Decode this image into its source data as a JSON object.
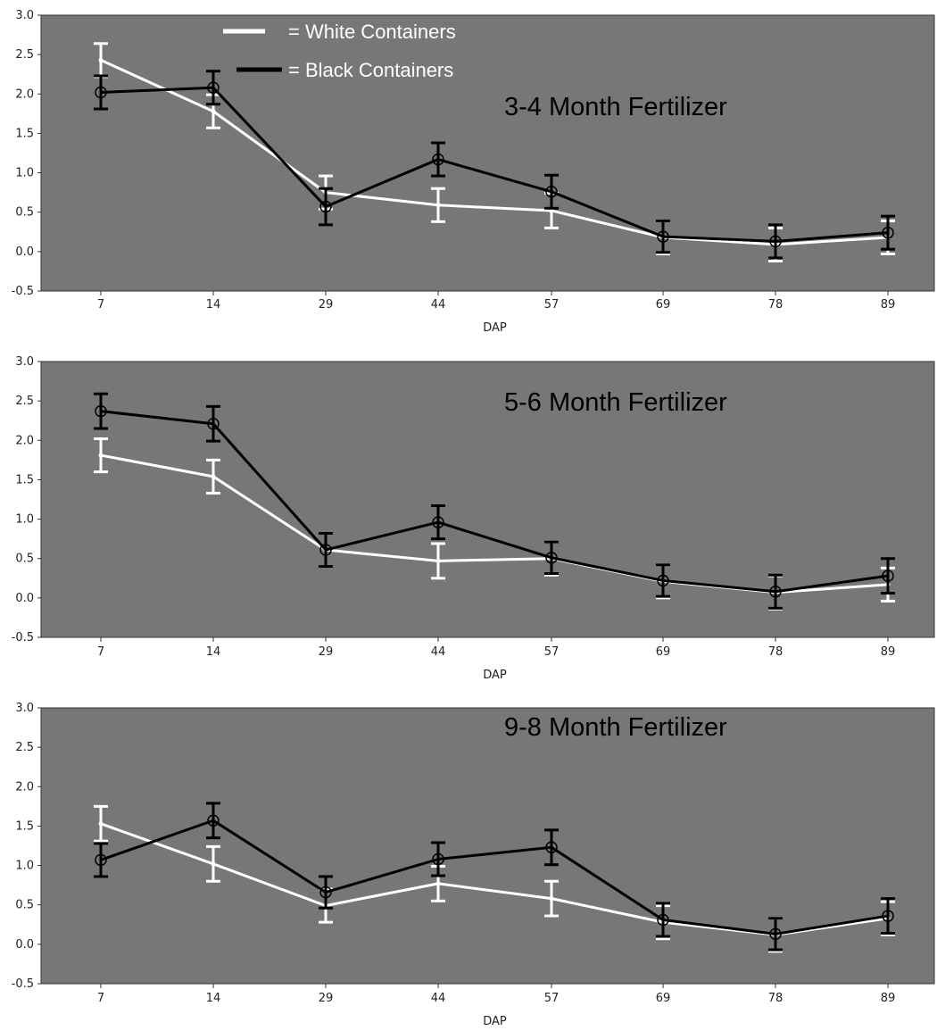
{
  "chart_data": [
    {
      "type": "line",
      "title": "3-4 Month Fertilizer",
      "xlabel": "DAP",
      "ylabel": "",
      "categories": [
        "7",
        "14",
        "29",
        "44",
        "57",
        "69",
        "78",
        "89"
      ],
      "yticks": [
        "-0.5",
        "0.0",
        "0.5",
        "1.0",
        "1.5",
        "2.0",
        "2.5",
        "3.0"
      ],
      "ylim": [
        -0.5,
        3.0
      ],
      "grid": false,
      "background": "#777777",
      "legend": {
        "placement": "top-left",
        "entries": [
          {
            "label": "= White Containers",
            "color": "#ffffff"
          },
          {
            "label": "= Black Containers",
            "color": "#000000"
          }
        ]
      },
      "series": [
        {
          "name": "White Containers",
          "color": "#ffffff",
          "values": [
            2.43,
            1.78,
            0.75,
            0.59,
            0.52,
            0.18,
            0.09,
            0.18
          ],
          "error": [
            0.21,
            0.21,
            0.21,
            0.21,
            0.22,
            0.21,
            0.21,
            0.21
          ]
        },
        {
          "name": "Black Containers",
          "color": "#000000",
          "values": [
            2.02,
            2.08,
            0.57,
            1.17,
            0.76,
            0.19,
            0.13,
            0.24
          ],
          "error": [
            0.21,
            0.21,
            0.23,
            0.21,
            0.21,
            0.2,
            0.21,
            0.21
          ]
        }
      ]
    },
    {
      "type": "line",
      "title": "5-6 Month Fertilizer",
      "xlabel": "DAP",
      "ylabel": "",
      "categories": [
        "7",
        "14",
        "29",
        "44",
        "57",
        "69",
        "78",
        "89"
      ],
      "yticks": [
        "-0.5",
        "0.0",
        "0.5",
        "1.0",
        "1.5",
        "2.0",
        "2.5",
        "3.0"
      ],
      "ylim": [
        -0.5,
        3.0
      ],
      "grid": false,
      "background": "#777777",
      "series": [
        {
          "name": "White Containers",
          "color": "#ffffff",
          "values": [
            1.81,
            1.54,
            0.61,
            0.47,
            0.5,
            0.21,
            0.07,
            0.17
          ],
          "error": [
            0.21,
            0.21,
            0.21,
            0.22,
            0.21,
            0.21,
            0.21,
            0.21
          ]
        },
        {
          "name": "Black Containers",
          "color": "#000000",
          "values": [
            2.37,
            2.21,
            0.61,
            0.96,
            0.51,
            0.22,
            0.08,
            0.28
          ],
          "error": [
            0.22,
            0.22,
            0.21,
            0.21,
            0.2,
            0.2,
            0.21,
            0.22
          ]
        }
      ]
    },
    {
      "type": "line",
      "title": "9-8 Month Fertilizer",
      "xlabel": "DAP",
      "ylabel": "",
      "categories": [
        "7",
        "14",
        "29",
        "44",
        "57",
        "69",
        "78",
        "89"
      ],
      "yticks": [
        "-0.5",
        "0.0",
        "0.5",
        "1.0",
        "1.5",
        "2.0",
        "2.5",
        "3.0"
      ],
      "ylim": [
        -0.5,
        3.0
      ],
      "grid": false,
      "background": "#777777",
      "series": [
        {
          "name": "White Containers",
          "color": "#ffffff",
          "values": [
            1.53,
            1.02,
            0.49,
            0.77,
            0.58,
            0.28,
            0.12,
            0.33
          ],
          "error": [
            0.22,
            0.22,
            0.21,
            0.22,
            0.22,
            0.21,
            0.21,
            0.21
          ]
        },
        {
          "name": "Black Containers",
          "color": "#000000",
          "values": [
            1.07,
            1.57,
            0.66,
            1.08,
            1.23,
            0.31,
            0.13,
            0.36
          ],
          "error": [
            0.21,
            0.22,
            0.2,
            0.21,
            0.22,
            0.21,
            0.2,
            0.22
          ]
        }
      ]
    }
  ]
}
